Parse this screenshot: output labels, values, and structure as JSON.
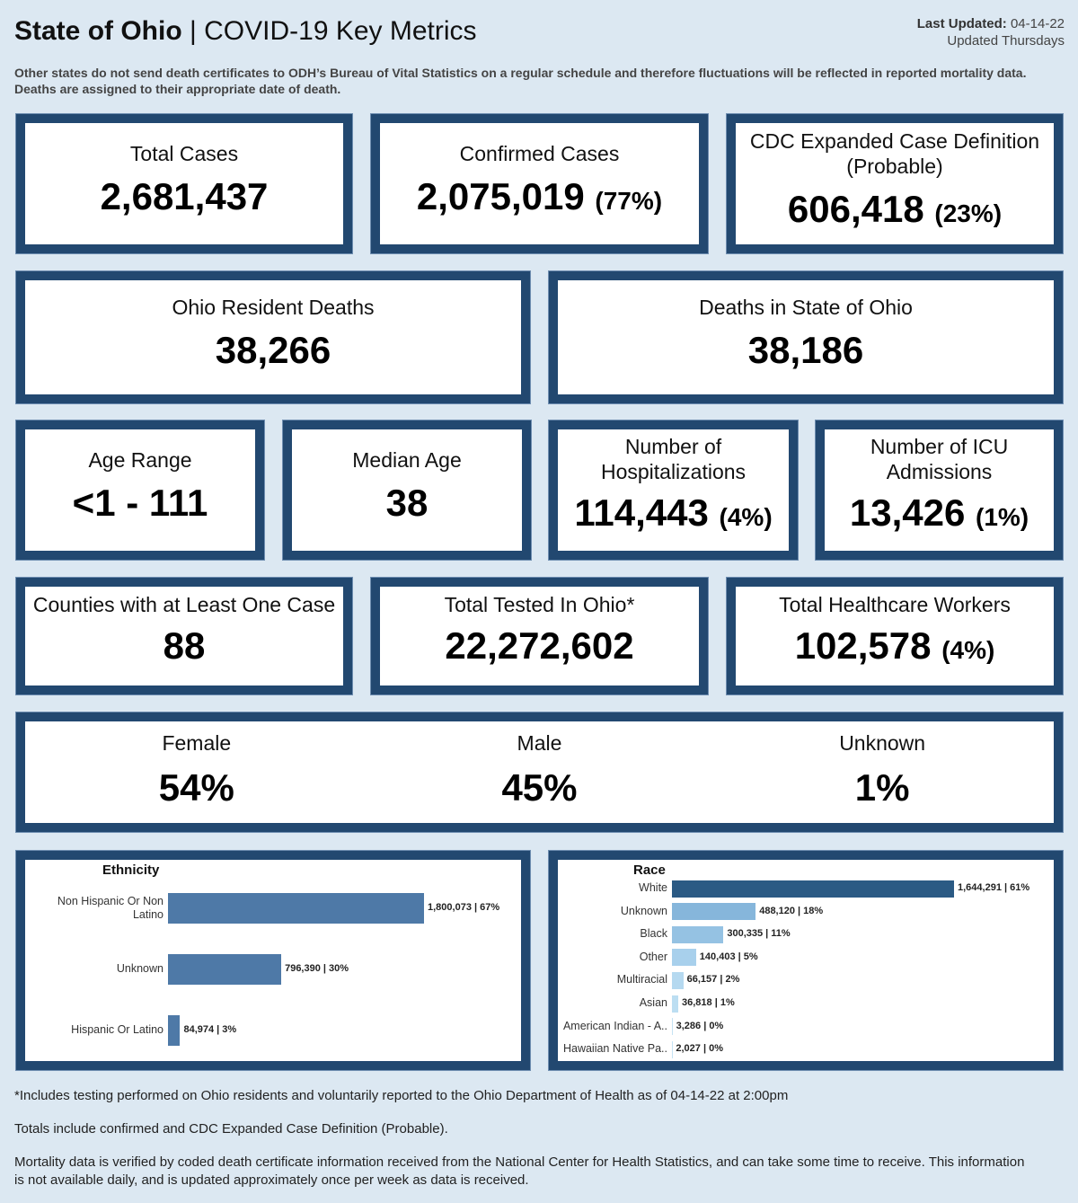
{
  "header": {
    "title_bold": "State of Ohio",
    "title_sep": " | ",
    "title_rest": "COVID-19 Key Metrics",
    "last_updated_label": "Last Updated:",
    "last_updated_value": "04-14-22",
    "update_schedule": "Updated Thursdays",
    "disclaimer": "Other states do not send death certificates to ODH’s Bureau of Vital Statistics on a regular schedule and therefore fluctuations will be reflected in reported mortality data. Deaths are assigned to their appropriate date of death."
  },
  "metrics": {
    "total_cases": {
      "label": "Total Cases",
      "value": "2,681,437"
    },
    "confirmed_cases": {
      "label": "Confirmed Cases",
      "value": "2,075,019",
      "pct": "(77%)"
    },
    "probable_cases": {
      "label": "CDC Expanded Case Definition (Probable)",
      "value": "606,418",
      "pct": "(23%)"
    },
    "resident_deaths": {
      "label": "Ohio Resident Deaths",
      "value": "38,266"
    },
    "state_deaths": {
      "label": "Deaths in State of Ohio",
      "value": "38,186"
    },
    "age_range": {
      "label": "Age Range",
      "value": "<1 - 111"
    },
    "median_age": {
      "label": "Median Age",
      "value": "38"
    },
    "hospitalizations": {
      "label": "Number of Hospitalizations",
      "value": "114,443",
      "pct": "(4%)"
    },
    "icu_admissions": {
      "label": "Number of ICU Admissions",
      "value": "13,426",
      "pct": "(1%)"
    },
    "counties": {
      "label": "Counties with at Least One Case",
      "value": "88"
    },
    "total_tested": {
      "label": "Total Tested In Ohio*",
      "value": "22,272,602"
    },
    "healthcare_workers": {
      "label": "Total Healthcare Workers",
      "value": "102,578",
      "pct": "(4%)"
    }
  },
  "sex": [
    {
      "label": "Female",
      "value": "54%"
    },
    {
      "label": "Male",
      "value": "45%"
    },
    {
      "label": "Unknown",
      "value": "1%"
    }
  ],
  "chart_data": [
    {
      "type": "bar",
      "orientation": "horizontal",
      "title": "Ethnicity",
      "categories": [
        "Non Hispanic Or Non Latino",
        "Unknown",
        "Hispanic Or Latino"
      ],
      "values": [
        1800073,
        796390,
        84974
      ],
      "percents": [
        67,
        30,
        3
      ],
      "data_labels": [
        "1,800,073 | 67%",
        "796,390 | 30%",
        "84,974 | 3%"
      ],
      "colors": [
        "#4e79a7",
        "#4e79a7",
        "#4e79a7"
      ],
      "xlabel": "",
      "ylabel": "",
      "grid": false
    },
    {
      "type": "bar",
      "orientation": "horizontal",
      "title": "Race",
      "categories": [
        "White",
        "Unknown",
        "Black",
        "Other",
        "Multiracial",
        "Asian",
        "American Indian - A..",
        "Hawaiian Native Pa.."
      ],
      "values": [
        1644291,
        488120,
        300335,
        140403,
        66157,
        36818,
        3286,
        2027
      ],
      "percents": [
        61,
        18,
        11,
        5,
        2,
        1,
        0,
        0
      ],
      "data_labels": [
        "1,644,291 | 61%",
        "488,120 | 18%",
        "300,335 | 11%",
        "140,403 | 5%",
        "66,157 | 2%",
        "36,818 | 1%",
        "3,286 | 0%",
        "2,027 | 0%"
      ],
      "colors": [
        "#2b5a84",
        "#86b6db",
        "#95c2e3",
        "#a8d0ec",
        "#b5d9f0",
        "#bcdef2",
        "#c5e3f4",
        "#c5e3f4"
      ],
      "xlabel": "",
      "ylabel": "",
      "grid": false
    }
  ],
  "footnotes": [
    "*Includes testing performed on Ohio residents and voluntarily reported to the Ohio Department of Health as of 04-14-22 at 2:00pm",
    "Totals include confirmed and CDC Expanded Case Definition (Probable).",
    "Mortality data is verified by coded death certificate information received from the National Center for Health Statistics, and can take some time to receive. This information is not available daily, and is updated approximately once per week as data is received."
  ]
}
